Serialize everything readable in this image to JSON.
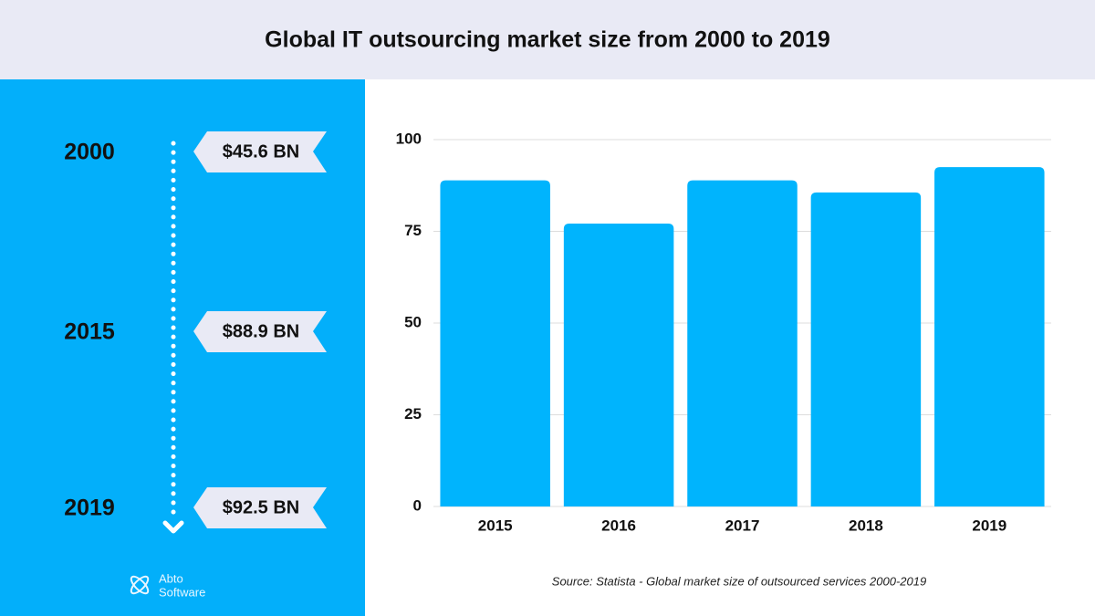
{
  "header": {
    "title": "Global IT outsourcing market size from 2000 to 2019"
  },
  "timeline": [
    {
      "year": "2000",
      "label": "$45.6 BN"
    },
    {
      "year": "2015",
      "label": "$88.9 BN"
    },
    {
      "year": "2019",
      "label": "$92.5 BN"
    }
  ],
  "logo": {
    "lines": [
      "Abto",
      "Software"
    ]
  },
  "source": "Source: Statista - Global market size of outsourced services 2000-2019",
  "chart_data": {
    "type": "bar",
    "categories": [
      "2015",
      "2016",
      "2017",
      "2018",
      "2019"
    ],
    "values": [
      88.9,
      77.1,
      88.9,
      85.6,
      92.5
    ],
    "color": "#00b4fd",
    "ylim": [
      0,
      100
    ],
    "yticks": [
      0,
      25,
      50,
      75,
      100
    ],
    "grid": true
  }
}
